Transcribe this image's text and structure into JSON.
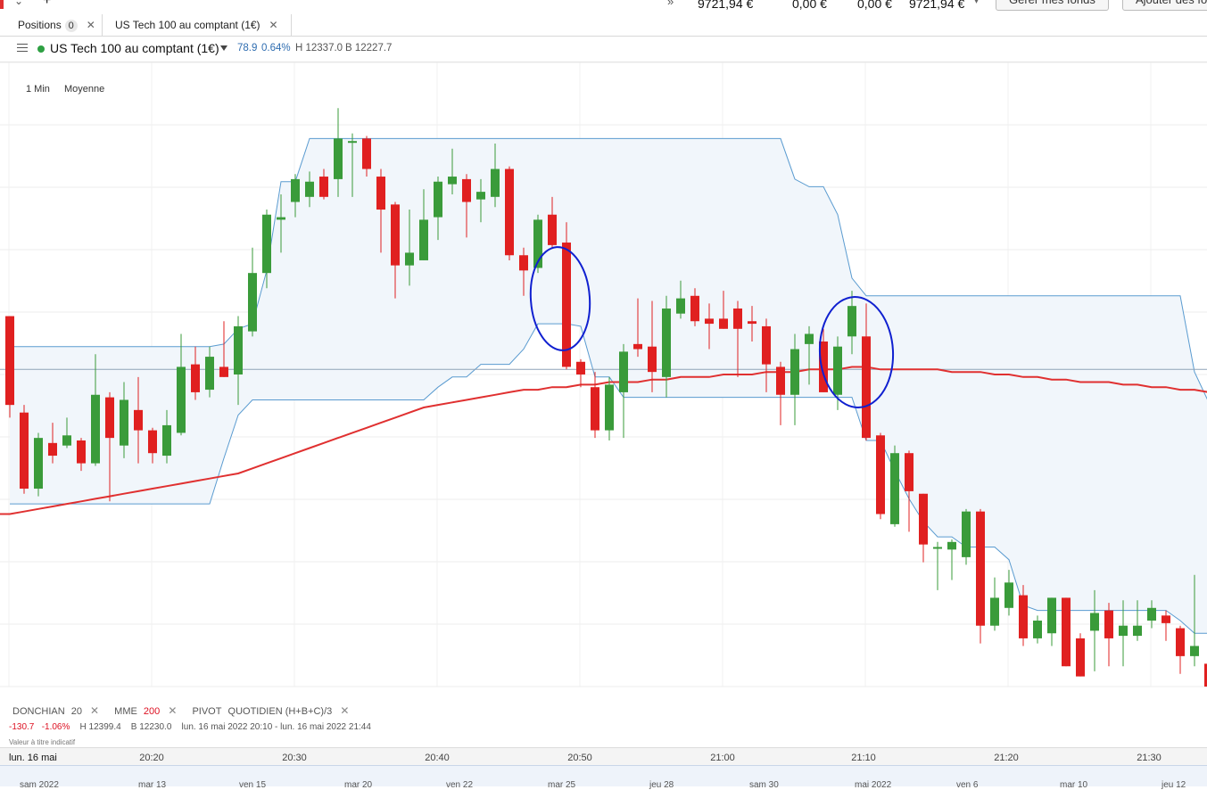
{
  "top_bar": {
    "values": [
      "9721,94 €",
      "0,00 €",
      "0,00 €",
      "9721,94 €"
    ],
    "buttons": [
      "Gérer mes fonds",
      "Ajouter des fo"
    ]
  },
  "tabs": [
    {
      "label": "Positions",
      "count": "0"
    },
    {
      "label": "US Tech 100 au comptant (1€)"
    }
  ],
  "instrument": {
    "name": "US Tech 100 au comptant (1€)",
    "change": "78.9",
    "change_pct": "0.64%",
    "high": "H 12337.0",
    "low": "B 12227.7"
  },
  "timeframe": {
    "interval": "1 Min",
    "type": "Moyenne"
  },
  "indicators": [
    {
      "name": "DONCHIAN",
      "param": "20"
    },
    {
      "name": "MME",
      "param": "200"
    },
    {
      "name": "PIVOT",
      "param": "QUOTIDIEN  (H+B+C)/3"
    }
  ],
  "ohlc": {
    "change": "-130.7",
    "change_pct": "-1.06%",
    "high": "H 12399.4",
    "low": "B 12230.0",
    "range": "lun. 16 mai 2022 20:10 - lun. 16 mai 2022 21:44"
  },
  "value_note": "Valeur à titre indicatif",
  "x_axis": {
    "current": "lun. 16 mai",
    "ticks": [
      "20:20",
      "20:30",
      "20:40",
      "20:50",
      "21:00",
      "21:10",
      "21:20",
      "21:30"
    ]
  },
  "navigator_labels": [
    "sam 2022",
    "mar 13",
    "ven 15",
    "mar 20",
    "ven 22",
    "mar 25",
    "jeu 28",
    "sam 30",
    "mai 2022",
    "ven 6",
    "mar 10",
    "jeu 12"
  ],
  "colors": {
    "up": "#3a9b3a",
    "down": "#e02020",
    "ema": "#e03030",
    "donchian": "#5a9bd0",
    "fill": "#f1f6fb",
    "annotation": "#1020d0"
  },
  "chart_data": {
    "type": "candlestick",
    "series": [
      {
        "o": 12330,
        "c": 12295,
        "h": 12330,
        "l": 12290
      },
      {
        "o": 12292,
        "c": 12262,
        "h": 12295,
        "l": 12260
      },
      {
        "o": 12262,
        "c": 12282,
        "h": 12284,
        "l": 12259
      },
      {
        "o": 12280,
        "c": 12275,
        "h": 12288,
        "l": 12272
      },
      {
        "o": 12279,
        "c": 12283,
        "h": 12290,
        "l": 12278
      },
      {
        "o": 12281,
        "c": 12272,
        "h": 12282,
        "l": 12269
      },
      {
        "o": 12272,
        "c": 12299,
        "h": 12315,
        "l": 12271
      },
      {
        "o": 12298,
        "c": 12282,
        "h": 12300,
        "l": 12257
      },
      {
        "o": 12279,
        "c": 12297,
        "h": 12304,
        "l": 12274
      },
      {
        "o": 12293,
        "c": 12285,
        "h": 12306,
        "l": 12272
      },
      {
        "o": 12285,
        "c": 12276,
        "h": 12286,
        "l": 12272
      },
      {
        "o": 12275,
        "c": 12287,
        "h": 12293,
        "l": 12272
      },
      {
        "o": 12284,
        "c": 12310,
        "h": 12323,
        "l": 12283
      },
      {
        "o": 12311,
        "c": 12300,
        "h": 12318,
        "l": 12297
      },
      {
        "o": 12301,
        "c": 12314,
        "h": 12318,
        "l": 12298
      },
      {
        "o": 12310,
        "c": 12306,
        "h": 12328,
        "l": 12306
      },
      {
        "o": 12307,
        "c": 12326,
        "h": 12330,
        "l": 12295
      },
      {
        "o": 12324,
        "c": 12347,
        "h": 12357,
        "l": 12322
      },
      {
        "o": 12347,
        "c": 12370,
        "h": 12372,
        "l": 12341
      },
      {
        "o": 12368,
        "c": 12369,
        "h": 12378,
        "l": 12355
      },
      {
        "o": 12375,
        "c": 12384,
        "h": 12386,
        "l": 12369
      },
      {
        "o": 12377,
        "c": 12383,
        "h": 12387,
        "l": 12373
      },
      {
        "o": 12385,
        "c": 12377,
        "h": 12388,
        "l": 12376
      },
      {
        "o": 12384,
        "c": 12400,
        "h": 12412,
        "l": 12377
      },
      {
        "o": 12399,
        "c": 12399,
        "h": 12402,
        "l": 12377
      },
      {
        "o": 12400,
        "c": 12388,
        "h": 12401,
        "l": 12385
      },
      {
        "o": 12385,
        "c": 12372,
        "h": 12388,
        "l": 12355
      },
      {
        "o": 12374,
        "c": 12350,
        "h": 12375,
        "l": 12337
      },
      {
        "o": 12350,
        "c": 12355,
        "h": 12372,
        "l": 12342
      },
      {
        "o": 12352,
        "c": 12368,
        "h": 12380,
        "l": 12352
      },
      {
        "o": 12369,
        "c": 12383,
        "h": 12385,
        "l": 12360
      },
      {
        "o": 12382,
        "c": 12385,
        "h": 12396,
        "l": 12378
      },
      {
        "o": 12384,
        "c": 12375,
        "h": 12386,
        "l": 12361
      },
      {
        "o": 12376,
        "c": 12379,
        "h": 12384,
        "l": 12367
      },
      {
        "o": 12377,
        "c": 12388,
        "h": 12398,
        "l": 12373
      },
      {
        "o": 12388,
        "c": 12354,
        "h": 12389,
        "l": 12352
      },
      {
        "o": 12354,
        "c": 12348,
        "h": 12357,
        "l": 12338
      },
      {
        "o": 12349,
        "c": 12368,
        "h": 12370,
        "l": 12347
      },
      {
        "o": 12370,
        "c": 12358,
        "h": 12377,
        "l": 12357
      },
      {
        "o": 12359,
        "c": 12310,
        "h": 12367,
        "l": 12309
      },
      {
        "o": 12312,
        "c": 12307,
        "h": 12313,
        "l": 12302
      },
      {
        "o": 12302,
        "c": 12285,
        "h": 12308,
        "l": 12282
      },
      {
        "o": 12285,
        "c": 12303,
        "h": 12306,
        "l": 12281
      },
      {
        "o": 12300,
        "c": 12316,
        "h": 12319,
        "l": 12282
      },
      {
        "o": 12319,
        "c": 12317,
        "h": 12337,
        "l": 12314
      },
      {
        "o": 12318,
        "c": 12308,
        "h": 12336,
        "l": 12300
      },
      {
        "o": 12306,
        "c": 12333,
        "h": 12338,
        "l": 12298
      },
      {
        "o": 12331,
        "c": 12337,
        "h": 12344,
        "l": 12329
      },
      {
        "o": 12338,
        "c": 12328,
        "h": 12341,
        "l": 12326
      },
      {
        "o": 12329,
        "c": 12327,
        "h": 12335,
        "l": 12317
      },
      {
        "o": 12329,
        "c": 12325,
        "h": 12340,
        "l": 12325
      },
      {
        "o": 12333,
        "c": 12325,
        "h": 12336,
        "l": 12306
      },
      {
        "o": 12328,
        "c": 12327,
        "h": 12334,
        "l": 12320
      },
      {
        "o": 12326,
        "c": 12311,
        "h": 12329,
        "l": 12300
      },
      {
        "o": 12310,
        "c": 12299,
        "h": 12312,
        "l": 12287
      },
      {
        "o": 12299,
        "c": 12317,
        "h": 12323,
        "l": 12287
      },
      {
        "o": 12319,
        "c": 12323,
        "h": 12326,
        "l": 12303
      },
      {
        "o": 12320,
        "c": 12300,
        "h": 12325,
        "l": 12300
      },
      {
        "o": 12299,
        "c": 12318,
        "h": 12322,
        "l": 12293
      },
      {
        "o": 12322,
        "c": 12334,
        "h": 12340,
        "l": 12315
      },
      {
        "o": 12322,
        "c": 12282,
        "h": 12335,
        "l": 12281
      },
      {
        "o": 12283,
        "c": 12252,
        "h": 12284,
        "l": 12250
      },
      {
        "o": 12248,
        "c": 12276,
        "h": 12279,
        "l": 12247
      },
      {
        "o": 12276,
        "c": 12261,
        "h": 12277,
        "l": 12245
      },
      {
        "o": 12260,
        "c": 12240,
        "h": 12260,
        "l": 12233
      },
      {
        "o": 12239,
        "c": 12239,
        "h": 12241,
        "l": 12222
      },
      {
        "o": 12238,
        "c": 12241,
        "h": 12242,
        "l": 12226
      },
      {
        "o": 12235,
        "c": 12253,
        "h": 12254,
        "l": 12232
      },
      {
        "o": 12253,
        "c": 12208,
        "h": 12254,
        "l": 12201
      },
      {
        "o": 12208,
        "c": 12219,
        "h": 12227,
        "l": 12206
      },
      {
        "o": 12215,
        "c": 12225,
        "h": 12230,
        "l": 12212
      },
      {
        "o": 12220,
        "c": 12203,
        "h": 12224,
        "l": 12200
      },
      {
        "o": 12203,
        "c": 12210,
        "h": 12212,
        "l": 12201
      },
      {
        "o": 12205,
        "c": 12219,
        "h": 12219,
        "l": 12200
      },
      {
        "o": 12219,
        "c": 12192,
        "h": 12219,
        "l": 12192
      },
      {
        "o": 12203,
        "c": 12188,
        "h": 12205,
        "l": 12188
      },
      {
        "o": 12206,
        "c": 12213,
        "h": 12222,
        "l": 12190
      },
      {
        "o": 12214,
        "c": 12203,
        "h": 12217,
        "l": 12192
      },
      {
        "o": 12204,
        "c": 12208,
        "h": 12218,
        "l": 12192
      },
      {
        "o": 12204,
        "c": 12208,
        "h": 12218,
        "l": 12202
      },
      {
        "o": 12210,
        "c": 12215,
        "h": 12218,
        "l": 12207
      },
      {
        "o": 12212,
        "c": 12209,
        "h": 12214,
        "l": 12202
      },
      {
        "o": 12207,
        "c": 12196,
        "h": 12208,
        "l": 12189
      },
      {
        "o": 12196,
        "c": 12200,
        "h": 12228,
        "l": 12192
      },
      {
        "o": 12193,
        "c": 12184,
        "h": 12199,
        "l": 12178
      }
    ],
    "donchian_upper": [
      12318,
      12318,
      12318,
      12318,
      12318,
      12318,
      12318,
      12318,
      12318,
      12318,
      12318,
      12318,
      12318,
      12318,
      12318,
      12319,
      12325,
      12327,
      12348,
      12383,
      12383,
      12400,
      12400,
      12400,
      12400,
      12400,
      12400,
      12400,
      12400,
      12400,
      12400,
      12400,
      12400,
      12400,
      12400,
      12400,
      12400,
      12400,
      12400,
      12400,
      12400,
      12400,
      12400,
      12400,
      12400,
      12400,
      12400,
      12400,
      12400,
      12400,
      12400,
      12400,
      12400,
      12400,
      12400,
      12384,
      12381,
      12381,
      12370,
      12345,
      12338,
      12338,
      12338,
      12338,
      12338,
      12338,
      12338,
      12338,
      12338,
      12338,
      12338,
      12338,
      12338,
      12338,
      12338,
      12338,
      12338,
      12338,
      12338,
      12338,
      12338,
      12338,
      12338,
      12308,
      12296
    ],
    "donchian_lower": [
      12256,
      12256,
      12256,
      12256,
      12256,
      12256,
      12256,
      12256,
      12256,
      12256,
      12256,
      12256,
      12256,
      12256,
      12256,
      12274,
      12291,
      12297,
      12297,
      12297,
      12297,
      12297,
      12297,
      12297,
      12297,
      12297,
      12297,
      12297,
      12297,
      12297,
      12302,
      12306,
      12306,
      12311,
      12311,
      12311,
      12317,
      12327,
      12327,
      12327,
      12326,
      12306,
      12306,
      12298,
      12298,
      12298,
      12298,
      12298,
      12298,
      12298,
      12298,
      12298,
      12298,
      12298,
      12298,
      12298,
      12298,
      12298,
      12298,
      12298,
      12281,
      12281,
      12269,
      12258,
      12249,
      12243,
      12243,
      12239,
      12239,
      12239,
      12234,
      12216,
      12214,
      12214,
      12214,
      12214,
      12214,
      12214,
      12214,
      12214,
      12214,
      12214,
      12210,
      12205,
      12205
    ],
    "ema_200": [
      12252,
      12253,
      12254,
      12255,
      12256,
      12257,
      12258,
      12259,
      12260,
      12261,
      12262,
      12263,
      12264,
      12265,
      12266,
      12267,
      12268,
      12270,
      12272,
      12274,
      12276,
      12278,
      12280,
      12282,
      12284,
      12286,
      12288,
      12290,
      12292,
      12294,
      12295,
      12296,
      12297,
      12298,
      12299,
      12300,
      12301,
      12301,
      12302,
      12302,
      12303,
      12303,
      12304,
      12304,
      12304,
      12305,
      12305,
      12306,
      12306,
      12306,
      12307,
      12307,
      12307,
      12308,
      12308,
      12308,
      12309,
      12309,
      12309,
      12310,
      12310,
      12309,
      12309,
      12309,
      12309,
      12309,
      12308,
      12308,
      12308,
      12307,
      12307,
      12306,
      12306,
      12305,
      12305,
      12304,
      12304,
      12304,
      12303,
      12303,
      12302,
      12302,
      12301,
      12301,
      12300
    ],
    "pivot": 12309,
    "ylim": [
      12184,
      12430
    ]
  }
}
